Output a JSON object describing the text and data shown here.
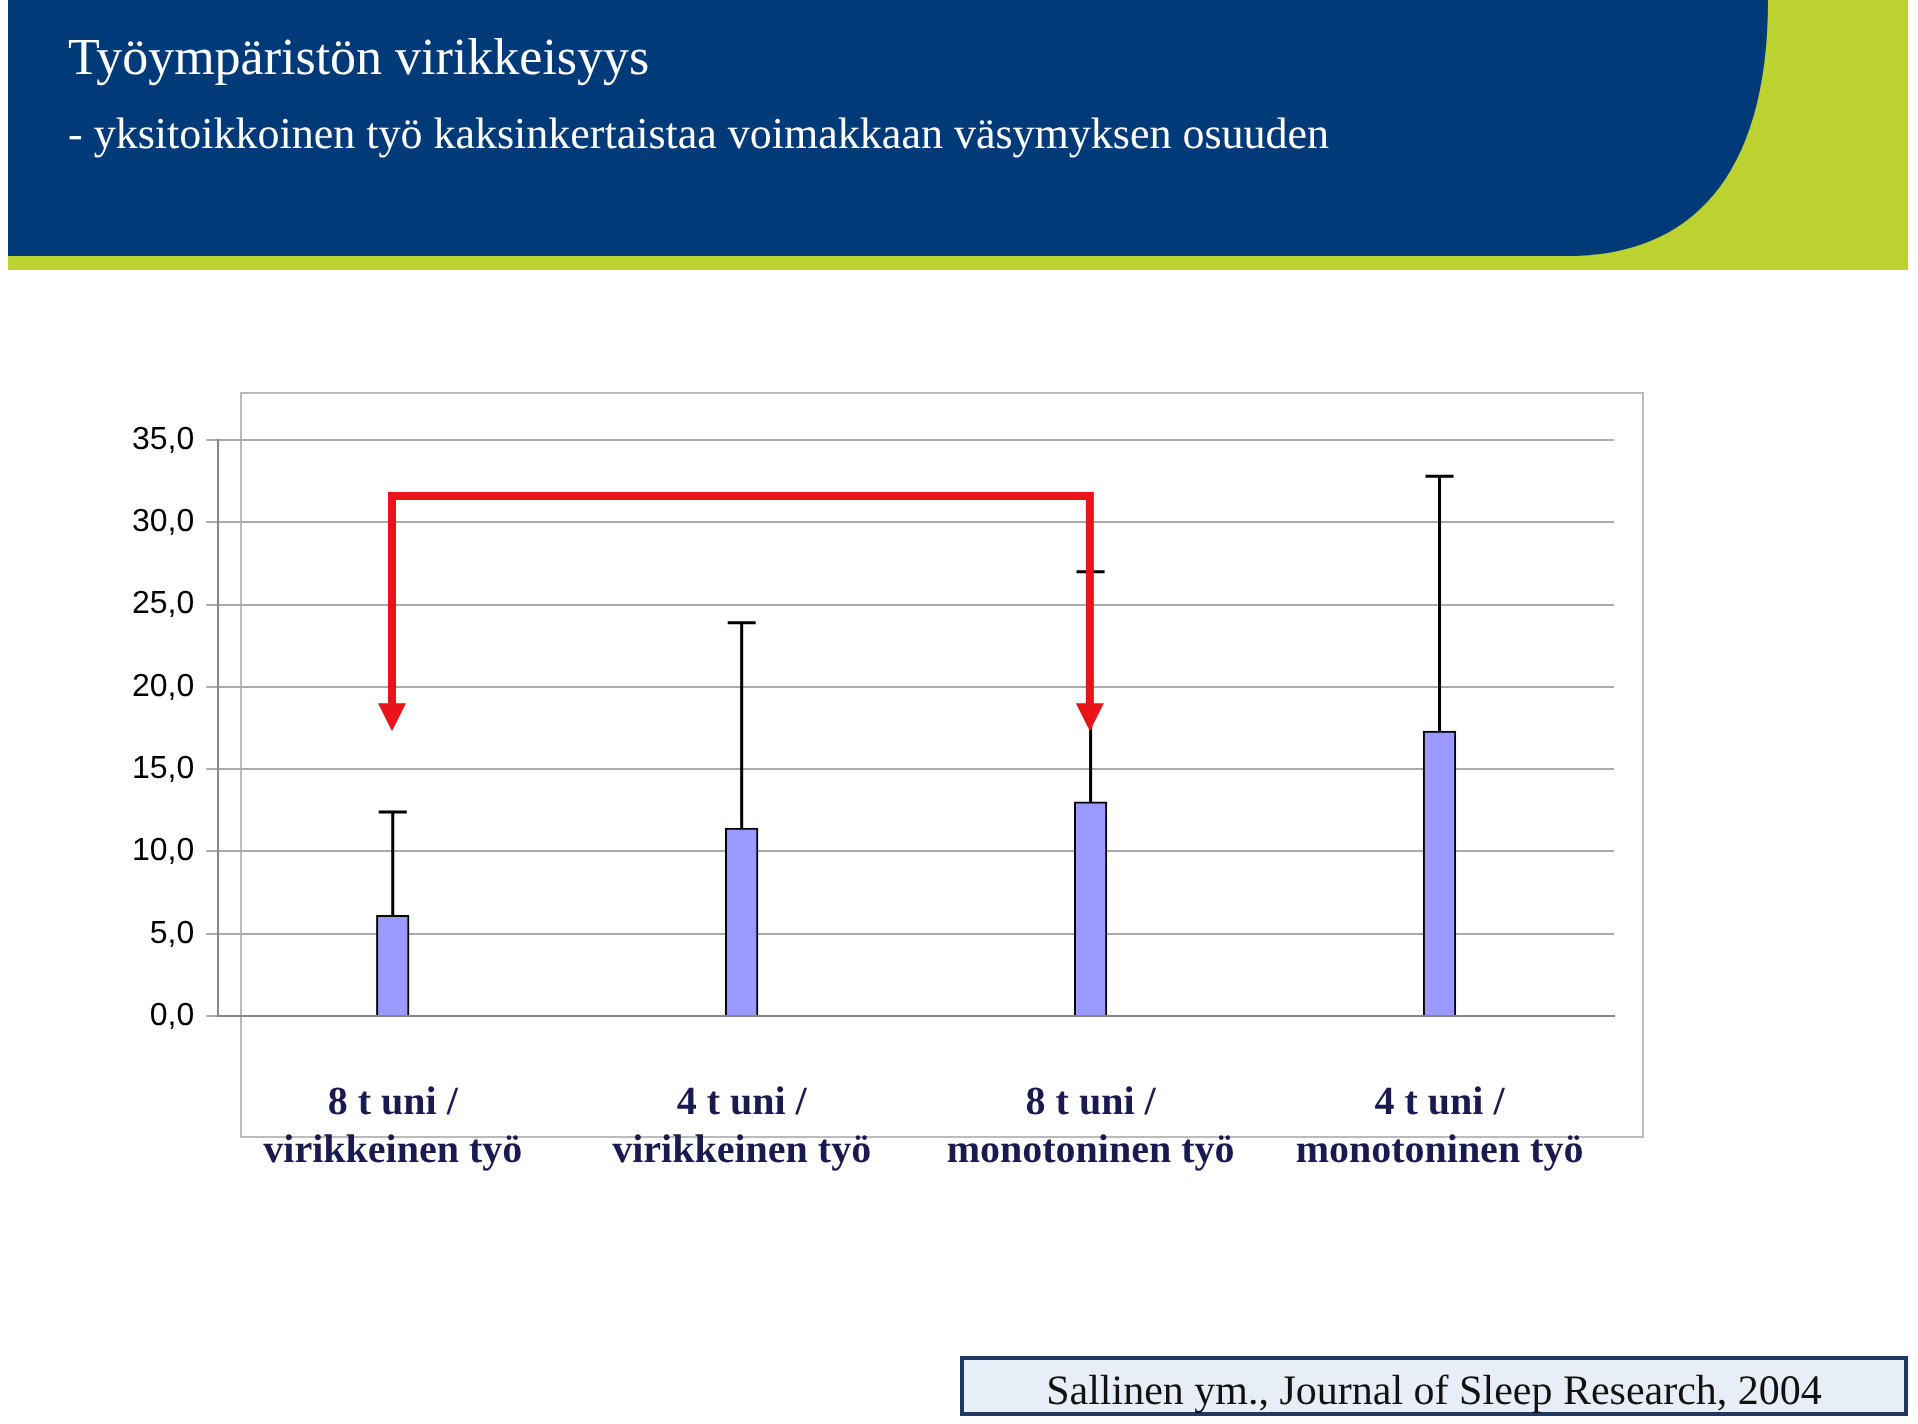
{
  "chart_data": {
    "type": "bar",
    "title": "Työympäristön virikkeisyys",
    "subtitle": "- yksitoikkoinen työ kaksinkertaistaa voimakkaan väsymyksen osuuden",
    "categories": [
      "8 t uni / virikkeinen työ",
      "4 t uni / virikkeinen työ",
      "8 t uni / monotoninen työ",
      "4 t uni / monotoninen työ"
    ],
    "values": [
      6.1,
      11.4,
      13.0,
      17.3
    ],
    "errors": [
      [
        6.1,
        12.4
      ],
      [
        11.4,
        23.9
      ],
      [
        13.0,
        27.0
      ],
      [
        17.3,
        32.8
      ]
    ],
    "color": "#9999ff",
    "ylim": [
      0,
      35
    ],
    "yticks": [
      {
        "value": 0,
        "label": "0,0"
      },
      {
        "value": 5,
        "label": "5,0"
      },
      {
        "value": 10,
        "label": "10,0"
      },
      {
        "value": 15,
        "label": "15,0"
      },
      {
        "value": 20,
        "label": "20,0"
      },
      {
        "value": 25,
        "label": "25,0"
      },
      {
        "value": 30,
        "label": "30,0"
      },
      {
        "value": 35,
        "label": "35,0"
      }
    ],
    "grid": "y",
    "annotations": [
      "Sallinen ym., Journal of Sleep Research, 2004"
    ]
  }
}
